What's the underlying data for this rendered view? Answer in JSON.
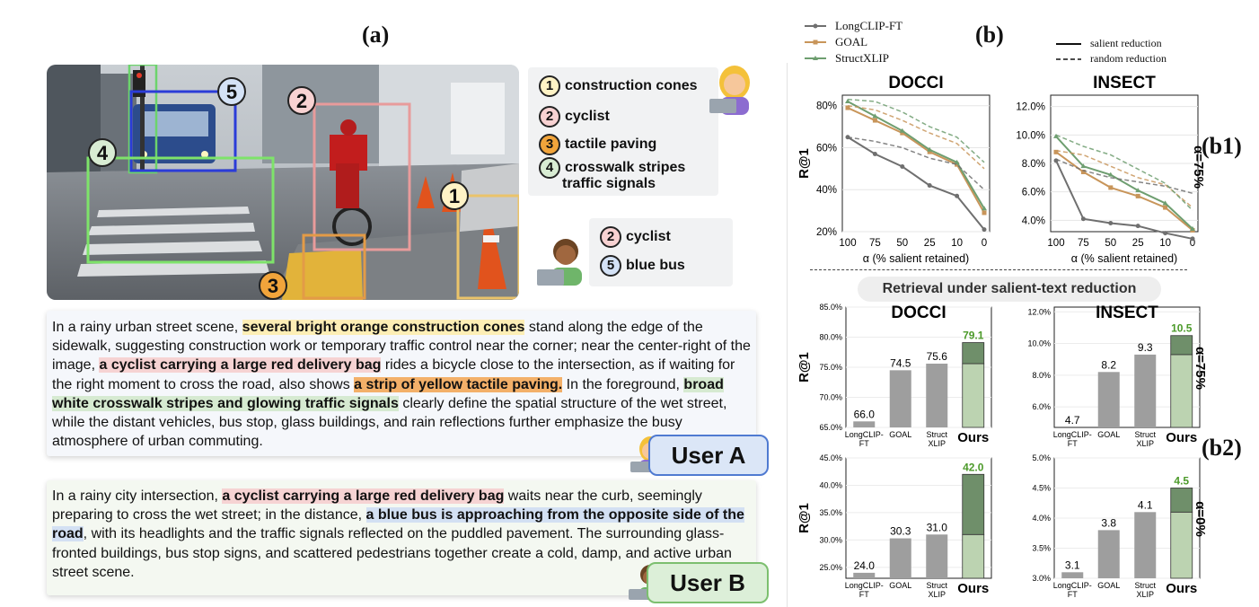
{
  "panel_a": {
    "label": "(a)",
    "tags": [
      {
        "n": "1",
        "label": "construction cones"
      },
      {
        "n": "2",
        "label": "cyclist"
      },
      {
        "n": "3",
        "label": "tactile paving"
      },
      {
        "n": "4",
        "label": "crosswalk stripes",
        "label2": "traffic signals"
      },
      {
        "n": "5",
        "label": "blue bus"
      }
    ],
    "user_b_tags": [
      {
        "n": "2",
        "label": "cyclist"
      },
      {
        "n": "5",
        "label": "blue bus"
      }
    ],
    "caption_a": {
      "t1": "In a rainy urban street scene, ",
      "h1": "several bright orange construction cones",
      "t2": " stand along the edge of the sidewalk, suggesting construction work or temporary traffic control near the corner; near the center-right of the image, ",
      "h2": "a cyclist carrying a large red delivery bag",
      "t3": " rides a bicycle close to the intersection, as if waiting for the right moment to cross the road, also shows ",
      "h3": "a strip of yellow tactile paving.",
      "t4": " In the foreground, ",
      "h4": "broad white crosswalk stripes and glowing traffic signals",
      "t5": " clearly define the spatial structure of the wet street, while the distant vehicles, bus stop, glass buildings, and rain reflections further emphasize the busy atmosphere of urban commuting."
    },
    "caption_b": {
      "t1": "In a rainy city intersection, ",
      "h1": "a cyclist carrying a large red delivery bag",
      "t2": " waits near the curb, seemingly preparing to cross the wet street; in the distance, ",
      "h2": "a blue bus is approaching from the opposite side of the road",
      "t3": ", with its headlights and the traffic signals reflected on the puddled pavement. The surrounding glass-fronted buildings, bus stop signs, and scattered pedestrians together create a cold, damp, and active urban street scene."
    },
    "user_a": "User A",
    "user_b": "User B"
  },
  "panel_b": {
    "label": "(b)",
    "label_b1": "(b1)",
    "label_b2": "(b2)",
    "legend_methods": [
      "LongCLIP-FT",
      "GOAL",
      "StructXLIP"
    ],
    "legend_lines": [
      "salient reduction",
      "random reduction"
    ],
    "subheader": "Retrieval under salient-text reduction",
    "colors": {
      "longclip": "#6f6f6f",
      "goal": "#c8955a",
      "structxlip": "#6e9e70",
      "bar": "#9e9e9e",
      "ours_base": "#bcd3b1",
      "ours_top": "#6f8f6a",
      "ours_text": "#4c9a2a"
    },
    "b1_charts": [
      {
        "title": "DOCCI",
        "x": [
          "100",
          "75",
          "50",
          "25",
          "10",
          "0"
        ],
        "xlabel": "α (% salient retained)",
        "ylabel": "R@1",
        "ylim": [
          20,
          85
        ],
        "yticks": [
          "20%",
          "40%",
          "60%",
          "80%"
        ],
        "ytick_vals": [
          20,
          40,
          60,
          80
        ],
        "series": [
          {
            "name": "LongCLIP-FT",
            "style": "solid",
            "values": [
              65,
              57,
              51,
              42,
              37,
              21
            ]
          },
          {
            "name": "GOAL",
            "style": "solid",
            "values": [
              79,
              73,
              67,
              58,
              52,
              29
            ]
          },
          {
            "name": "StructXLIP",
            "style": "solid",
            "values": [
              82,
              75,
              68,
              59,
              53,
              31
            ]
          },
          {
            "name": "LongCLIP-FT",
            "style": "dashed",
            "values": [
              65,
              63,
              60,
              55,
              52,
              40
            ]
          },
          {
            "name": "GOAL",
            "style": "dashed",
            "values": [
              80,
              78,
              73,
              67,
              62,
              50
            ]
          },
          {
            "name": "StructXLIP",
            "style": "dashed",
            "values": [
              83,
              82,
              77,
              70,
              65,
              53
            ]
          }
        ]
      },
      {
        "title": "INSECT",
        "x": [
          "100",
          "75",
          "50",
          "25",
          "10",
          "0"
        ],
        "xlabel": "α (% salient retained)",
        "ylabel": "",
        "ylim": [
          3.2,
          12.8
        ],
        "yticks": [
          "4.0%",
          "6.0%",
          "8.0%",
          "10.0%",
          "12.0%"
        ],
        "ytick_vals": [
          4,
          6,
          8,
          10,
          12
        ],
        "side_label": "α=75%",
        "series": [
          {
            "name": "LongCLIP-FT",
            "style": "solid",
            "values": [
              8.2,
              4.1,
              3.8,
              3.6,
              3.1,
              2.7
            ]
          },
          {
            "name": "GOAL",
            "style": "solid",
            "values": [
              8.8,
              7.4,
              6.3,
              5.7,
              4.9,
              3.3
            ]
          },
          {
            "name": "StructXLIP",
            "style": "solid",
            "values": [
              9.9,
              7.8,
              7.2,
              6.1,
              5.2,
              3.4
            ]
          },
          {
            "name": "LongCLIP-FT",
            "style": "dashed",
            "values": [
              8.3,
              7.5,
              7.0,
              6.7,
              6.4,
              5.9
            ]
          },
          {
            "name": "GOAL",
            "style": "dashed",
            "values": [
              8.9,
              8.6,
              7.8,
              7.0,
              6.5,
              4.9
            ]
          },
          {
            "name": "StructXLIP",
            "style": "dashed",
            "values": [
              10.0,
              9.2,
              8.6,
              7.6,
              6.6,
              4.7
            ]
          }
        ]
      }
    ],
    "b2_charts": [
      {
        "title": "DOCCI",
        "ylabel": "R@1",
        "ylim": [
          65,
          85
        ],
        "yticks": [
          "65.0%",
          "70.0%",
          "75.0%",
          "80.0%",
          "85.0%"
        ],
        "ytick_vals": [
          65,
          70,
          75,
          80,
          85
        ],
        "categories": [
          "LongCLIP-FT",
          "GOAL",
          "Struct XLIP",
          "Ours"
        ],
        "values": [
          66.0,
          74.5,
          75.6,
          79.1
        ],
        "value_labels": [
          "66.0",
          "74.5",
          "75.6",
          "79.1"
        ],
        "ours_base": 75.6
      },
      {
        "title": "INSECT",
        "ylabel": "",
        "ylim": [
          4.7,
          12.3
        ],
        "yticks": [
          "6.0%",
          "8.0%",
          "10.0%",
          "12.0%"
        ],
        "ytick_vals": [
          6,
          8,
          10,
          12
        ],
        "categories": [
          "LongCLIP-FT",
          "GOAL",
          "Struct XLIP",
          "Ours"
        ],
        "values": [
          4.7,
          8.2,
          9.3,
          10.5
        ],
        "value_labels": [
          "4.7",
          "8.2",
          "9.3",
          "10.5"
        ],
        "ours_base": 9.3,
        "side_label": "α=75%"
      },
      {
        "title": "",
        "ylabel": "R@1",
        "ylim": [
          23,
          45
        ],
        "yticks": [
          "25.0%",
          "30.0%",
          "35.0%",
          "40.0%",
          "45.0%"
        ],
        "ytick_vals": [
          25,
          30,
          35,
          40,
          45
        ],
        "categories": [
          "LongCLIP-FT",
          "GOAL",
          "Struct XLIP",
          "Ours"
        ],
        "values": [
          24.0,
          30.3,
          31.0,
          42.0
        ],
        "value_labels": [
          "24.0",
          "30.3",
          "31.0",
          "42.0"
        ],
        "ours_base": 31.0
      },
      {
        "title": "",
        "ylabel": "",
        "ylim": [
          3.0,
          5.0
        ],
        "yticks": [
          "3.0%",
          "3.5%",
          "4.0%",
          "4.5%",
          "5.0%"
        ],
        "ytick_vals": [
          3.0,
          3.5,
          4.0,
          4.5,
          5.0
        ],
        "categories": [
          "LongCLIP-FT",
          "GOAL",
          "Struct XLIP",
          "Ours"
        ],
        "values": [
          3.1,
          3.8,
          4.1,
          4.5
        ],
        "value_labels": [
          "3.1",
          "3.8",
          "4.1",
          "4.5"
        ],
        "ours_base": 4.1,
        "side_label": "α=0%"
      }
    ]
  }
}
